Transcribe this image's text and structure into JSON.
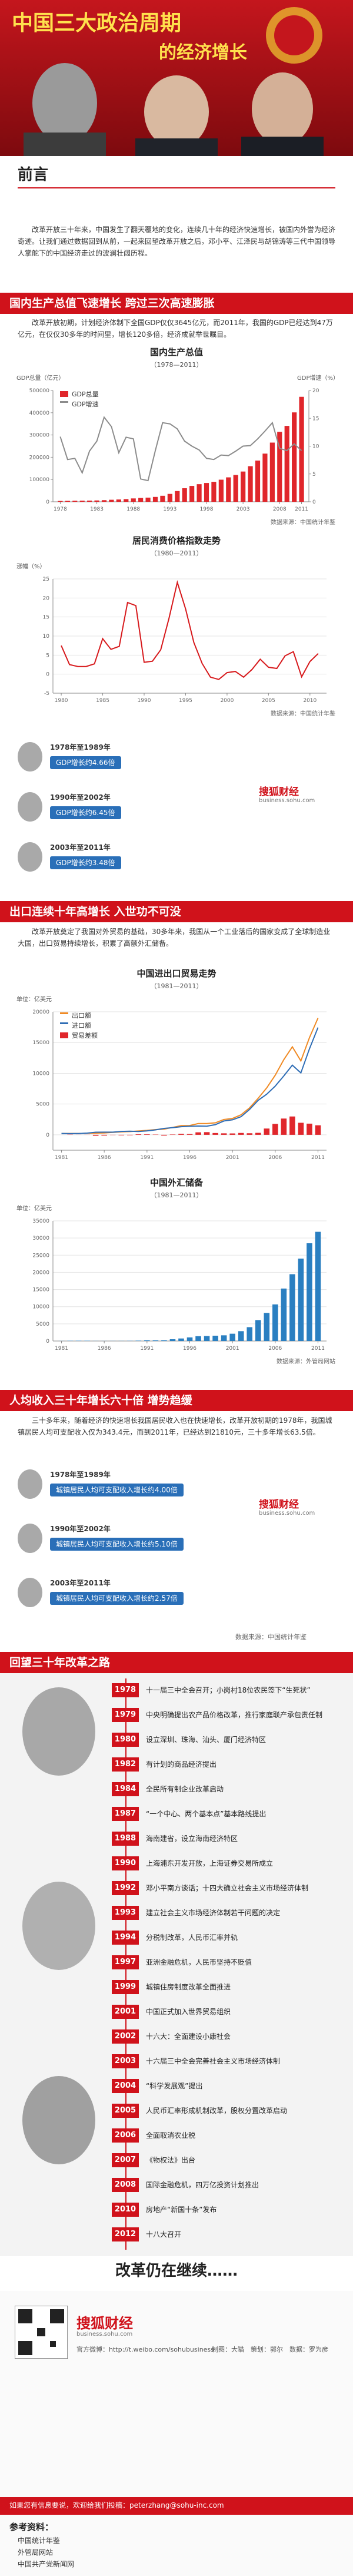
{
  "header": {
    "title_line1": "中国三大政治周期",
    "title_line2": "的经济增长"
  },
  "preface": {
    "heading": "前言",
    "text": "改革开放三十年来，中国发生了翻天覆地的变化，连续几十年的经济快速增长，被国内外誉为经济奇迹。让我们通过数据回到从前，一起来回望改革开放之后，邓小平、江泽民与胡锦涛等三代中国领导人掌舵下的中国经济走过的波澜壮阔历程。"
  },
  "sections": [
    {
      "heading": "国内生产总值飞速增长 跨过三次高速膨胀",
      "text": "改革开放初期，计划经济体制下全国GDP仅仅3645亿元，而2011年，我国的GDP已经达到47万亿元，在仅仅30多年的时间里，增长120多倍，经济成就举世瞩目。"
    },
    {
      "heading": "出口连续十年高增长 入世功不可没",
      "text": "改革开放奠定了我国对外贸易的基础，30多年来，我国从一个工业落后的国家变成了全球制造业大国，出口贸易持续增长，积累了高额外汇储备。"
    },
    {
      "heading": "人均收入三十年增长六十倍 增势趋缓",
      "text": "三十多年来，随着经济的快速增长我国居民收入也在快速增长，改革开放初期的1978年，我国城镇居民人均可支配收入仅为343.4元，而到2011年，已经达到21810元，三十多年增长63.5倍。"
    },
    {
      "heading": "回望三十年改革之路"
    }
  ],
  "gdp_periods": [
    {
      "label": "1978年至1989年",
      "value": "GDP增长约4.66倍"
    },
    {
      "label": "1990年至2002年",
      "value": "GDP增长约6.45倍"
    },
    {
      "label": "2003年至2011年",
      "value": "GDP增长约3.48倍"
    }
  ],
  "income_periods": [
    {
      "label": "1978年至1989年",
      "value": "城镇居民人均可支配收入增长约4.00倍"
    },
    {
      "label": "1990年至2002年",
      "value": "城镇居民人均可支配收入增长约5.10倍"
    },
    {
      "label": "2003年至2011年",
      "value": "城镇居民人均可支配收入增长约2.57倍"
    }
  ],
  "income_source": "数据来源：中国统计年鉴",
  "brand": {
    "name": "搜狐财经",
    "url": "business.sohu.com"
  },
  "timeline": [
    {
      "year": "1978",
      "event": "十一届三中全会召开；小岗村18位农民签下“生死状”"
    },
    {
      "year": "1979",
      "event": "中央明确提出农产品价格改革，推行家庭联产承包责任制"
    },
    {
      "year": "1980",
      "event": "设立深圳、珠海、汕头、厦门经济特区"
    },
    {
      "year": "1982",
      "event": "有计划的商品经济提出"
    },
    {
      "year": "1984",
      "event": "全民所有制企业改革启动"
    },
    {
      "year": "1987",
      "event": "“一个中心、两个基本点”基本路线提出"
    },
    {
      "year": "1988",
      "event": "海南建省，设立海南经济特区"
    },
    {
      "year": "1990",
      "event": "上海浦东开发开放，上海证券交易所成立"
    },
    {
      "year": "1992",
      "event": "邓小平南方谈话；十四大确立社会主义市场经济体制"
    },
    {
      "year": "1993",
      "event": "建立社会主义市场经济体制若干问题的决定"
    },
    {
      "year": "1994",
      "event": "分税制改革，人民币汇率并轨"
    },
    {
      "year": "1997",
      "event": "亚洲金融危机，人民币坚持不贬值"
    },
    {
      "year": "1999",
      "event": "城镇住房制度改革全面推进"
    },
    {
      "year": "2001",
      "event": "中国正式加入世界贸易组织"
    },
    {
      "year": "2002",
      "event": "十六大：全面建设小康社会"
    },
    {
      "year": "2003",
      "event": "十六届三中全会完善社会主义市场经济体制"
    },
    {
      "year": "2004",
      "event": "“科学发展观”提出"
    },
    {
      "year": "2005",
      "event": "人民币汇率形成机制改革，股权分置改革启动"
    },
    {
      "year": "2006",
      "event": "全面取消农业税"
    },
    {
      "year": "2007",
      "event": "《物权法》出台"
    },
    {
      "year": "2008",
      "event": "国际金融危机，四万亿投资计划推出"
    },
    {
      "year": "2010",
      "event": "房地产“新国十条”发布"
    },
    {
      "year": "2012",
      "event": "十八大召开"
    }
  ],
  "closing": "改革仍在继续……",
  "footer": {
    "credits": "制图：大猫　策划：郭尔　数据：罗为彦",
    "weibo": "官方微博：http://t.weibo.com/sohubusiness",
    "contribute": "如果您有信息要说，欢迎给我们投稿：peterzhang@sohu-inc.com",
    "refs_heading": "参考资料：",
    "refs": [
      "中国统计年鉴",
      "外管局网站",
      "中国共产党新闻网"
    ]
  },
  "chart_data": [
    {
      "type": "bar",
      "title": "国内生产总值",
      "subtitle": "（1978—2011）",
      "ylabel": "GDP总量（亿元）",
      "y2label": "GDP增速（%）",
      "x": [
        1978,
        1979,
        1980,
        1981,
        1982,
        1983,
        1984,
        1985,
        1986,
        1987,
        1988,
        1989,
        1990,
        1991,
        1992,
        1993,
        1994,
        1995,
        1996,
        1997,
        1998,
        1999,
        2000,
        2001,
        2002,
        2003,
        2004,
        2005,
        2006,
        2007,
        2008,
        2009,
        2010,
        2011
      ],
      "xlim": [
        1977,
        2012
      ],
      "xticks": [
        1978,
        1983,
        1988,
        1993,
        1998,
        2003,
        2008,
        2011
      ],
      "ylim": [
        0,
        500000
      ],
      "yticks": [
        0,
        100000,
        200000,
        300000,
        400000,
        500000
      ],
      "y2lim": [
        0,
        20
      ],
      "y2ticks": [
        0,
        5,
        10,
        15,
        20
      ],
      "grid": false,
      "legend": "top-left",
      "series": [
        {
          "name": "GDP总量",
          "color": "#e0262b",
          "values": [
            3645,
            4063,
            4546,
            4892,
            5323,
            5963,
            7208,
            9016,
            10275,
            12059,
            15043,
            16992,
            18668,
            21782,
            26924,
            35334,
            48198,
            60794,
            71177,
            78973,
            84402,
            89677,
            99215,
            109655,
            120333,
            135823,
            159878,
            184937,
            216314,
            265810,
            314045,
            340903,
            401513,
            471564
          ]
        },
        {
          "name": "GDP增速",
          "color": "#8c8c8c",
          "type": "line",
          "axis": "y2",
          "values": [
            11.7,
            7.6,
            7.8,
            5.2,
            9.1,
            10.9,
            15.2,
            13.5,
            8.8,
            11.6,
            11.3,
            4.1,
            3.8,
            9.2,
            14.2,
            14.0,
            13.1,
            10.9,
            10.0,
            9.3,
            7.8,
            7.6,
            8.4,
            8.3,
            9.1,
            10.0,
            10.1,
            11.3,
            12.7,
            14.2,
            9.6,
            9.2,
            10.4,
            9.2
          ]
        }
      ],
      "source": "数据来源：中国统计年鉴"
    },
    {
      "type": "line",
      "title": "居民消费价格指数走势",
      "subtitle": "（1980—2011）",
      "ylabel": "涨幅（%）",
      "x": [
        1980,
        1981,
        1982,
        1983,
        1984,
        1985,
        1986,
        1987,
        1988,
        1989,
        1990,
        1991,
        1992,
        1993,
        1994,
        1995,
        1996,
        1997,
        1998,
        1999,
        2000,
        2001,
        2002,
        2003,
        2004,
        2005,
        2006,
        2007,
        2008,
        2009,
        2010,
        2011
      ],
      "xlim": [
        1979,
        2012
      ],
      "xticks": [
        1980,
        1985,
        1990,
        1995,
        2000,
        2005,
        2010
      ],
      "ylim": [
        -5,
        25
      ],
      "yticks": [
        -5,
        0,
        5,
        10,
        15,
        20,
        25
      ],
      "grid": true,
      "color": "#d7191c",
      "values": [
        7.5,
        2.5,
        2.0,
        2.0,
        2.7,
        9.3,
        6.5,
        7.3,
        18.8,
        18.0,
        3.1,
        3.4,
        6.4,
        14.7,
        24.1,
        17.1,
        8.3,
        2.8,
        -0.8,
        -1.4,
        0.4,
        0.7,
        -0.8,
        1.2,
        3.9,
        1.8,
        1.5,
        4.8,
        5.9,
        -0.7,
        3.3,
        5.4
      ],
      "source": "数据来源：中国统计年鉴"
    },
    {
      "type": "line",
      "title": "中国进出口贸易走势",
      "subtitle": "（1981—2011）",
      "ylabel": "单位：亿美元",
      "x": [
        1981,
        1982,
        1983,
        1984,
        1985,
        1986,
        1987,
        1988,
        1989,
        1990,
        1991,
        1992,
        1993,
        1994,
        1995,
        1996,
        1997,
        1998,
        1999,
        2000,
        2001,
        2002,
        2003,
        2004,
        2005,
        2006,
        2007,
        2008,
        2009,
        2010,
        2011
      ],
      "xlim": [
        1980,
        2012
      ],
      "xticks": [
        1981,
        1986,
        1991,
        1996,
        2001,
        2006,
        2011
      ],
      "ylim": [
        -2500,
        20000
      ],
      "yticks": [
        0,
        5000,
        10000,
        15000,
        20000
      ],
      "grid": true,
      "legend": "top-left",
      "series": [
        {
          "name": "出口额",
          "color": "#f08a24",
          "values": [
            220,
            223,
            222,
            261,
            274,
            309,
            394,
            475,
            525,
            621,
            719,
            849,
            917,
            1210,
            1488,
            1511,
            1828,
            1837,
            1949,
            2492,
            2661,
            3256,
            4382,
            5933,
            7620,
            9689,
            12204,
            14307,
            12016,
            15778,
            18984
          ]
        },
        {
          "name": "进口额",
          "color": "#2f6db5",
          "values": [
            221,
            193,
            214,
            274,
            423,
            429,
            432,
            553,
            591,
            534,
            638,
            806,
            1040,
            1156,
            1321,
            1388,
            1424,
            1402,
            1657,
            2251,
            2436,
            2952,
            4128,
            5612,
            6600,
            7915,
            9561,
            11326,
            10059,
            13962,
            17435
          ]
        },
        {
          "name": "贸易差额",
          "color": "#e0262b",
          "type": "bar",
          "values": [
            -1,
            30,
            8,
            -13,
            -149,
            -120,
            -38,
            -78,
            -66,
            87,
            81,
            43,
            -123,
            54,
            167,
            123,
            404,
            435,
            292,
            241,
            225,
            304,
            254,
            321,
            1020,
            1774,
            2643,
            2981,
            1957,
            1816,
            1549
          ]
        }
      ]
    },
    {
      "type": "bar",
      "title": "中国外汇储备",
      "subtitle": "（1981—2011）",
      "ylabel": "单位：亿美元",
      "x": [
        1981,
        1982,
        1983,
        1984,
        1985,
        1986,
        1987,
        1988,
        1989,
        1990,
        1991,
        1992,
        1993,
        1994,
        1995,
        1996,
        1997,
        1998,
        1999,
        2000,
        2001,
        2002,
        2003,
        2004,
        2005,
        2006,
        2007,
        2008,
        2009,
        2010,
        2011
      ],
      "xlim": [
        1980,
        2012
      ],
      "xticks": [
        1981,
        1986,
        1991,
        1996,
        2001,
        2006,
        2011
      ],
      "ylim": [
        0,
        35000
      ],
      "yticks": [
        0,
        5000,
        10000,
        15000,
        20000,
        25000,
        30000,
        35000
      ],
      "grid": true,
      "color": "#2a7fc1",
      "values": [
        27,
        70,
        89,
        82,
        26,
        21,
        29,
        34,
        56,
        111,
        217,
        194,
        212,
        516,
        736,
        1050,
        1399,
        1450,
        1547,
        1656,
        2122,
        2864,
        4033,
        6099,
        8189,
        10663,
        15282,
        19460,
        23992,
        28473,
        31811
      ],
      "source": "数据来源：外管局网站"
    }
  ]
}
